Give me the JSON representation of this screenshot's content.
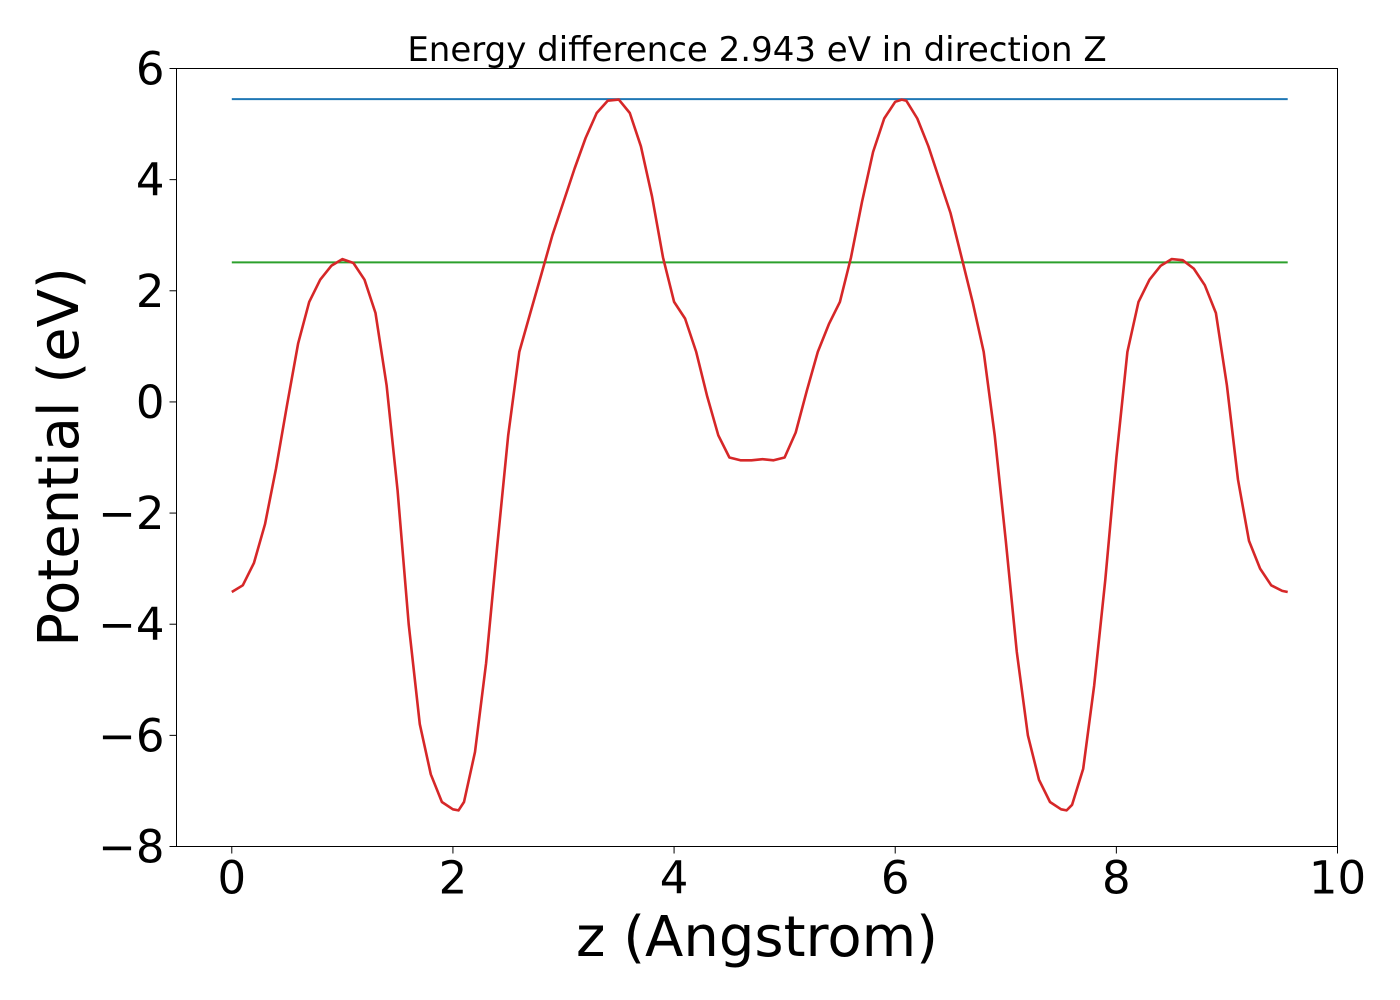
{
  "chart_data": {
    "type": "line",
    "title": "Energy difference 2.943 eV in direction Z",
    "xlabel": "z (Angstrom)",
    "ylabel": "Potential (eV)",
    "xlim": [
      -0.5,
      10.0
    ],
    "ylim": [
      -8.0,
      6.0
    ],
    "xticks": [
      0,
      2,
      4,
      6,
      8,
      10
    ],
    "yticks": [
      -8,
      -6,
      -4,
      -2,
      0,
      2,
      4,
      6
    ],
    "xtick_labels": [
      "0",
      "2",
      "4",
      "6",
      "8",
      "10"
    ],
    "ytick_labels": [
      "−8",
      "−6",
      "−4",
      "−2",
      "0",
      "2",
      "4",
      "6"
    ],
    "grid": false,
    "series": [
      {
        "color": "#1f77b4",
        "x": [
          0.0,
          9.55
        ],
        "y": [
          5.45,
          5.45
        ]
      },
      {
        "color": "#2ca02c",
        "x": [
          0.0,
          9.55
        ],
        "y": [
          2.51,
          2.51
        ]
      },
      {
        "color": "#d62728",
        "x": [
          0.0,
          0.1,
          0.2,
          0.3,
          0.4,
          0.5,
          0.6,
          0.7,
          0.8,
          0.9,
          1.0,
          1.1,
          1.2,
          1.3,
          1.4,
          1.5,
          1.6,
          1.7,
          1.8,
          1.9,
          2.0,
          2.05,
          2.1,
          2.2,
          2.3,
          2.4,
          2.5,
          2.6,
          2.7,
          2.8,
          2.9,
          3.0,
          3.1,
          3.2,
          3.3,
          3.4,
          3.5,
          3.6,
          3.7,
          3.8,
          3.9,
          4.0,
          4.1,
          4.2,
          4.3,
          4.4,
          4.5,
          4.6,
          4.7,
          4.8,
          4.9,
          5.0,
          5.1,
          5.2,
          5.3,
          5.4,
          5.5,
          5.6,
          5.7,
          5.8,
          5.9,
          6.0,
          6.06,
          6.1,
          6.2,
          6.3,
          6.4,
          6.5,
          6.6,
          6.7,
          6.8,
          6.9,
          7.0,
          7.1,
          7.2,
          7.3,
          7.4,
          7.5,
          7.55,
          7.6,
          7.7,
          7.8,
          7.9,
          8.0,
          8.1,
          8.2,
          8.3,
          8.4,
          8.5,
          8.6,
          8.7,
          8.8,
          8.9,
          9.0,
          9.1,
          9.2,
          9.3,
          9.4,
          9.5,
          9.55
        ],
        "y": [
          -3.42,
          -3.3,
          -2.9,
          -2.2,
          -1.2,
          -0.05,
          1.05,
          1.8,
          2.2,
          2.45,
          2.57,
          2.5,
          2.2,
          1.6,
          0.3,
          -1.6,
          -4.0,
          -5.8,
          -6.7,
          -7.2,
          -7.33,
          -7.35,
          -7.2,
          -6.3,
          -4.7,
          -2.6,
          -0.6,
          0.9,
          1.6,
          2.3,
          3.0,
          3.6,
          4.2,
          4.75,
          5.2,
          5.42,
          5.44,
          5.2,
          4.6,
          3.7,
          2.6,
          1.8,
          1.5,
          0.9,
          0.1,
          -0.6,
          -1.0,
          -1.05,
          -1.05,
          -1.03,
          -1.05,
          -1.0,
          -0.55,
          0.2,
          0.9,
          1.4,
          1.8,
          2.6,
          3.6,
          4.5,
          5.1,
          5.4,
          5.44,
          5.42,
          5.1,
          4.6,
          4.0,
          3.4,
          2.6,
          1.8,
          0.9,
          -0.6,
          -2.5,
          -4.5,
          -6.0,
          -6.8,
          -7.2,
          -7.33,
          -7.35,
          -7.25,
          -6.6,
          -5.1,
          -3.2,
          -1.0,
          0.9,
          1.8,
          2.2,
          2.45,
          2.57,
          2.55,
          2.4,
          2.1,
          1.6,
          0.3,
          -1.4,
          -2.5,
          -3.0,
          -3.3,
          -3.4,
          -3.42
        ]
      }
    ]
  }
}
